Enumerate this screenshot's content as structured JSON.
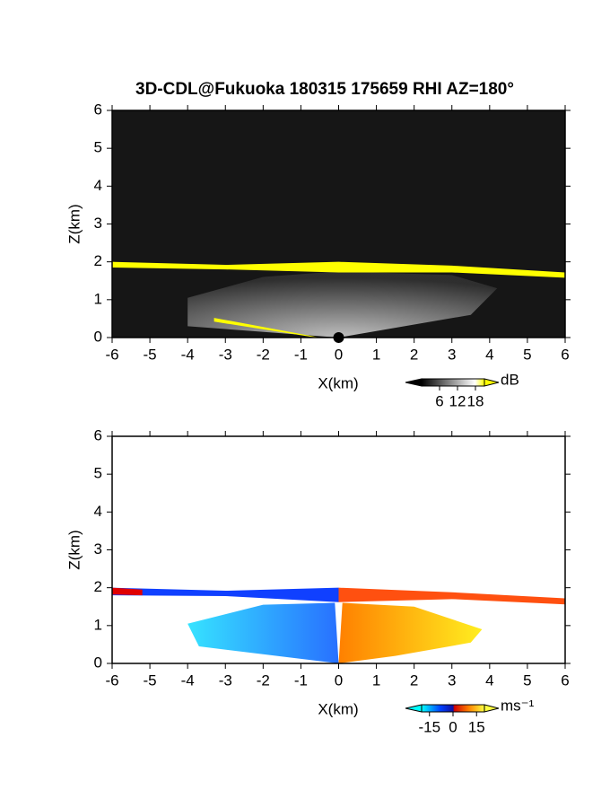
{
  "chart_data": [
    {
      "type": "rhi",
      "title": "3D-CDL@Fukuoka 180315 175659 RHI AZ=180°",
      "xlabel": "X(km)",
      "ylabel": "Z(km)",
      "xlim": [
        -6,
        6
      ],
      "xticks": [
        -6,
        -5,
        -4,
        -3,
        -2,
        -1,
        0,
        1,
        2,
        3,
        4,
        5,
        6
      ],
      "ylim": [
        0,
        6
      ],
      "yticks": [
        0,
        1,
        2,
        3,
        4,
        5,
        6
      ],
      "colorbar": {
        "unit": "dB",
        "clim": [
          0,
          21
        ],
        "ticks": [
          6,
          12,
          18
        ]
      }
    },
    {
      "type": "rhi",
      "xlabel": "X(km)",
      "ylabel": "Z(km)",
      "xlim": [
        -6,
        6
      ],
      "xticks": [
        -6,
        -5,
        -4,
        -3,
        -2,
        -1,
        0,
        1,
        2,
        3,
        4,
        5,
        6
      ],
      "ylim": [
        0,
        6
      ],
      "yticks": [
        0,
        1,
        2,
        3,
        4,
        5,
        6
      ],
      "colorbar": {
        "unit": "ms⁻¹",
        "clim": [
          -20,
          20
        ],
        "ticks": [
          -15,
          0,
          15
        ]
      }
    }
  ]
}
